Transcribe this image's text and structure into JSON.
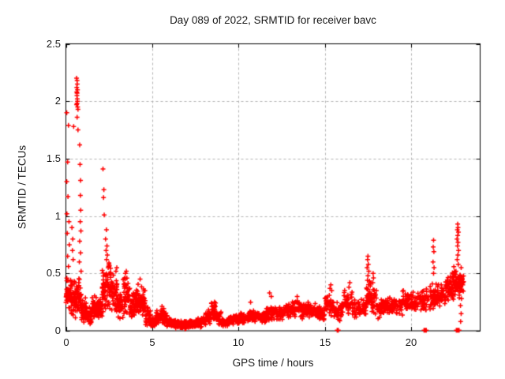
{
  "colors": {
    "marker": "#ff0000",
    "grid": "#b3b3b3",
    "border": "#000000",
    "background": "#ffffff",
    "text": "#1a1a1a"
  },
  "chart_data": {
    "type": "scatter",
    "title": "Day 089 of 2022, SRMTID for receiver bavc",
    "xlabel": "GPS time / hours",
    "ylabel": "SRMTID / TECUs",
    "xlim": [
      0,
      24
    ],
    "ylim": [
      0,
      2.5
    ],
    "xticks": [
      0,
      5,
      10,
      15,
      20
    ],
    "yticks": [
      0,
      0.5,
      1,
      1.5,
      2,
      2.5
    ],
    "xtick_labels": [
      "0",
      "5",
      "10",
      "15",
      "20"
    ],
    "ytick_labels": [
      "0",
      "0.5",
      "1",
      "1.5",
      "2",
      "2.5"
    ],
    "grid": true,
    "legend": "none",
    "marker": "plus",
    "marker_color": "#ff0000",
    "point_seed": 89,
    "points": [
      [
        0.05,
        1.9
      ],
      [
        0.15,
        1.79
      ],
      [
        0.1,
        1.47
      ],
      [
        0.05,
        1.3
      ],
      [
        0.12,
        1.17
      ],
      [
        0.06,
        1.02
      ],
      [
        0.18,
        0.95
      ],
      [
        0.08,
        0.85
      ],
      [
        0.2,
        0.75
      ],
      [
        0.1,
        0.65
      ],
      [
        0.15,
        0.56
      ],
      [
        0.45,
        1.78
      ],
      [
        0.62,
        2.2
      ],
      [
        0.65,
        2.18
      ],
      [
        0.63,
        2.12
      ],
      [
        0.67,
        2.1
      ],
      [
        0.64,
        2.05
      ],
      [
        0.66,
        2.02
      ],
      [
        0.65,
        1.98
      ],
      [
        0.68,
        1.95
      ],
      [
        0.63,
        2.08
      ],
      [
        0.66,
        2.15
      ],
      [
        0.62,
        1.97
      ],
      [
        0.67,
        2.0
      ],
      [
        0.65,
        2.07
      ],
      [
        0.7,
        1.93
      ],
      [
        0.65,
        1.86
      ],
      [
        0.7,
        1.75
      ],
      [
        0.8,
        1.62
      ],
      [
        0.82,
        1.45
      ],
      [
        0.85,
        1.31
      ],
      [
        0.84,
        1.18
      ],
      [
        0.86,
        1.05
      ],
      [
        0.83,
        0.95
      ],
      [
        0.87,
        0.87
      ],
      [
        0.8,
        0.78
      ],
      [
        0.85,
        0.68
      ],
      [
        0.78,
        0.6
      ],
      [
        0.88,
        0.52
      ],
      [
        0.35,
        0.9
      ],
      [
        0.4,
        0.8
      ],
      [
        0.38,
        0.7
      ],
      [
        0.42,
        0.62
      ],
      [
        2.15,
        1.41
      ],
      [
        2.2,
        1.23
      ],
      [
        2.18,
        1.16
      ],
      [
        2.22,
        1.01
      ],
      [
        2.35,
        0.88
      ],
      [
        2.3,
        0.8
      ],
      [
        2.38,
        0.74
      ],
      [
        2.33,
        0.7
      ],
      [
        2.4,
        0.66
      ],
      [
        2.36,
        0.62
      ],
      [
        2.5,
        0.58
      ],
      [
        2.45,
        0.55
      ],
      [
        2.95,
        0.55
      ],
      [
        2.9,
        0.52
      ],
      [
        3.5,
        0.52
      ],
      [
        3.45,
        0.5
      ],
      [
        4.3,
        0.45
      ],
      [
        10.7,
        0.25
      ],
      [
        11.8,
        0.33
      ],
      [
        11.9,
        0.3
      ],
      [
        13.4,
        0.3
      ],
      [
        15.35,
        0.4
      ],
      [
        15.3,
        0.37
      ],
      [
        15.4,
        0.35
      ],
      [
        16.45,
        0.42
      ],
      [
        16.4,
        0.38
      ],
      [
        17.5,
        0.65
      ],
      [
        17.48,
        0.62
      ],
      [
        17.52,
        0.58
      ],
      [
        17.45,
        0.55
      ],
      [
        17.55,
        0.52
      ],
      [
        17.5,
        0.48
      ],
      [
        17.47,
        0.44
      ],
      [
        17.8,
        0.5
      ],
      [
        17.82,
        0.46
      ],
      [
        17.78,
        0.42
      ],
      [
        19.55,
        0.35
      ],
      [
        21.3,
        0.79
      ],
      [
        21.28,
        0.73
      ],
      [
        21.32,
        0.69
      ],
      [
        21.27,
        0.6
      ],
      [
        21.33,
        0.55
      ],
      [
        21.3,
        0.5
      ],
      [
        22.7,
        0.93
      ],
      [
        22.72,
        0.9
      ],
      [
        22.68,
        0.88
      ],
      [
        22.74,
        0.86
      ],
      [
        22.7,
        0.83
      ],
      [
        22.66,
        0.8
      ],
      [
        22.72,
        0.77
      ],
      [
        22.69,
        0.74
      ],
      [
        22.75,
        0.7
      ],
      [
        22.71,
        0.66
      ],
      [
        22.67,
        0.62
      ],
      [
        22.73,
        0.58
      ],
      [
        22.9,
        0.55
      ],
      [
        22.6,
        0.52
      ],
      [
        22.85,
        0.48
      ],
      [
        22.95,
        0.45
      ],
      [
        22.8,
        0.4
      ],
      [
        22.88,
        0.35
      ],
      [
        22.92,
        0.28
      ],
      [
        22.86,
        0.22
      ],
      [
        22.9,
        0.15
      ],
      [
        22.87,
        0.08
      ],
      [
        15.72,
        0.005
      ],
      [
        15.78,
        0.005
      ],
      [
        20.75,
        0.005
      ],
      [
        20.82,
        0.005
      ],
      [
        20.88,
        0.005
      ],
      [
        22.62,
        0.005
      ],
      [
        22.66,
        0.005
      ],
      [
        22.7,
        0.005
      ],
      [
        22.74,
        0.005
      ],
      [
        22.78,
        0.005
      ]
    ],
    "density_bands": [
      [
        0.0,
        0.3,
        0.15,
        0.5,
        40
      ],
      [
        0.3,
        0.6,
        0.1,
        0.48,
        45
      ],
      [
        0.6,
        0.9,
        0.1,
        0.5,
        45
      ],
      [
        0.9,
        1.2,
        0.06,
        0.3,
        40
      ],
      [
        1.2,
        1.5,
        0.05,
        0.22,
        35
      ],
      [
        1.5,
        1.8,
        0.08,
        0.33,
        40
      ],
      [
        1.8,
        2.1,
        0.08,
        0.3,
        40
      ],
      [
        2.1,
        2.4,
        0.15,
        0.55,
        45
      ],
      [
        2.4,
        2.7,
        0.15,
        0.62,
        40
      ],
      [
        2.7,
        3.0,
        0.12,
        0.52,
        40
      ],
      [
        3.0,
        3.3,
        0.08,
        0.35,
        35
      ],
      [
        3.3,
        3.7,
        0.1,
        0.5,
        45
      ],
      [
        3.7,
        4.0,
        0.08,
        0.35,
        35
      ],
      [
        4.0,
        4.3,
        0.12,
        0.42,
        40
      ],
      [
        4.3,
        4.6,
        0.1,
        0.4,
        40
      ],
      [
        4.6,
        4.9,
        0.04,
        0.22,
        35
      ],
      [
        4.9,
        5.2,
        0.02,
        0.12,
        35
      ],
      [
        5.2,
        5.5,
        0.04,
        0.18,
        35
      ],
      [
        5.5,
        5.8,
        0.05,
        0.22,
        35
      ],
      [
        5.8,
        6.1,
        0.03,
        0.14,
        35
      ],
      [
        6.1,
        6.6,
        0.02,
        0.1,
        50
      ],
      [
        6.6,
        7.1,
        0.01,
        0.09,
        50
      ],
      [
        7.1,
        7.6,
        0.02,
        0.1,
        50
      ],
      [
        7.6,
        8.1,
        0.03,
        0.13,
        50
      ],
      [
        8.1,
        8.4,
        0.05,
        0.2,
        35
      ],
      [
        8.4,
        8.7,
        0.08,
        0.26,
        35
      ],
      [
        8.7,
        9.0,
        0.05,
        0.18,
        30
      ],
      [
        9.0,
        9.3,
        0.03,
        0.11,
        30
      ],
      [
        9.3,
        9.7,
        0.04,
        0.13,
        35
      ],
      [
        9.7,
        10.1,
        0.05,
        0.15,
        35
      ],
      [
        10.1,
        10.6,
        0.06,
        0.17,
        40
      ],
      [
        10.6,
        11.1,
        0.07,
        0.19,
        40
      ],
      [
        11.1,
        11.6,
        0.06,
        0.18,
        40
      ],
      [
        11.6,
        12.1,
        0.08,
        0.22,
        40
      ],
      [
        12.1,
        12.6,
        0.08,
        0.22,
        40
      ],
      [
        12.6,
        13.1,
        0.1,
        0.25,
        40
      ],
      [
        13.1,
        13.6,
        0.1,
        0.27,
        40
      ],
      [
        13.6,
        14.1,
        0.1,
        0.26,
        40
      ],
      [
        14.1,
        14.6,
        0.1,
        0.25,
        40
      ],
      [
        14.6,
        15.0,
        0.08,
        0.22,
        35
      ],
      [
        15.0,
        15.5,
        0.12,
        0.33,
        40
      ],
      [
        15.5,
        16.0,
        0.08,
        0.26,
        35
      ],
      [
        16.0,
        16.6,
        0.12,
        0.36,
        45
      ],
      [
        16.6,
        17.1,
        0.1,
        0.28,
        40
      ],
      [
        17.1,
        17.4,
        0.12,
        0.3,
        25
      ],
      [
        17.4,
        17.7,
        0.15,
        0.45,
        30
      ],
      [
        17.7,
        18.0,
        0.12,
        0.4,
        25
      ],
      [
        18.0,
        18.5,
        0.1,
        0.28,
        40
      ],
      [
        18.5,
        19.0,
        0.12,
        0.3,
        40
      ],
      [
        19.0,
        19.5,
        0.12,
        0.32,
        40
      ],
      [
        19.5,
        20.0,
        0.15,
        0.35,
        40
      ],
      [
        20.0,
        20.5,
        0.15,
        0.35,
        40
      ],
      [
        20.5,
        21.0,
        0.17,
        0.38,
        40
      ],
      [
        21.0,
        21.5,
        0.18,
        0.43,
        40
      ],
      [
        21.5,
        22.0,
        0.2,
        0.45,
        45
      ],
      [
        22.0,
        22.4,
        0.24,
        0.52,
        45
      ],
      [
        22.4,
        22.8,
        0.26,
        0.58,
        45
      ],
      [
        22.8,
        23.05,
        0.3,
        0.5,
        25
      ]
    ]
  }
}
